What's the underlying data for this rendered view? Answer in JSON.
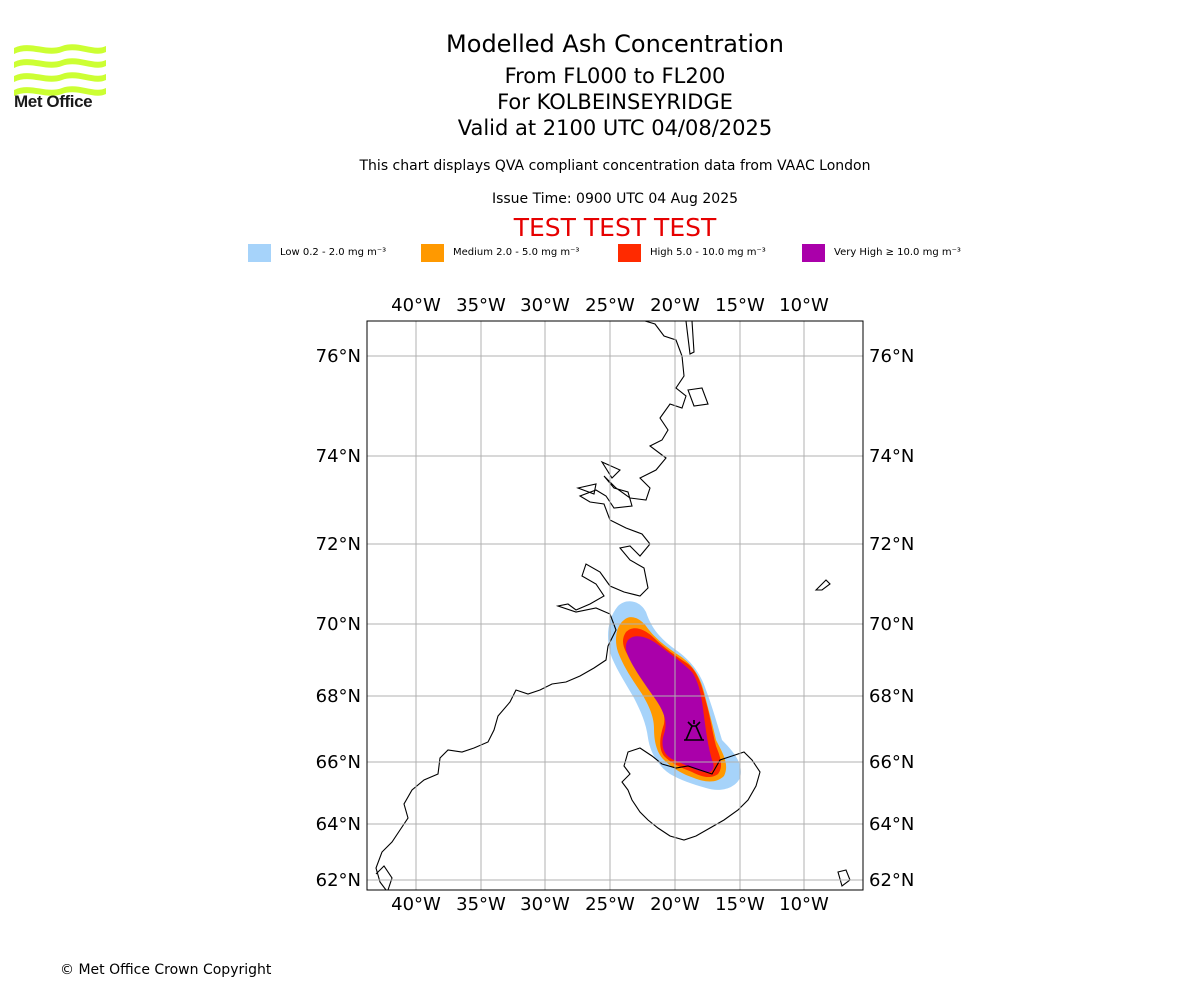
{
  "header": {
    "logo_text": "Met Office",
    "title": "Modelled Ash Concentration",
    "levels": "From FL000 to FL200",
    "volcano": "For KOLBEINSEYRIDGE",
    "valid": "Valid at 2100 UTC 04/08/2025",
    "description": "This chart displays QVA compliant concentration data from VAAC London",
    "issue_time": "Issue Time: 0900 UTC 04 Aug 2025",
    "test_banner": "TEST TEST TEST"
  },
  "legend": [
    {
      "label": "Low 0.2 - 2.0 mg m⁻³",
      "color": "#a6d3fa"
    },
    {
      "label": "Medium 2.0 - 5.0 mg m⁻³",
      "color": "#ff9900"
    },
    {
      "label": "High 5.0 - 10.0 mg m⁻³",
      "color": "#ff2a00"
    },
    {
      "label": "Very High  ≥  10.0 mg m⁻³",
      "color": "#aa00aa"
    }
  ],
  "map": {
    "lon_ticks": [
      "40°W",
      "35°W",
      "30°W",
      "25°W",
      "20°W",
      "15°W",
      "10°W"
    ],
    "lat_ticks": [
      "76°N",
      "74°N",
      "72°N",
      "70°N",
      "68°N",
      "66°N",
      "64°N",
      "62°N"
    ],
    "volcano_symbol": "volcano-icon",
    "grid": true
  },
  "footer": {
    "copyright": "© Met Office Crown Copyright"
  }
}
